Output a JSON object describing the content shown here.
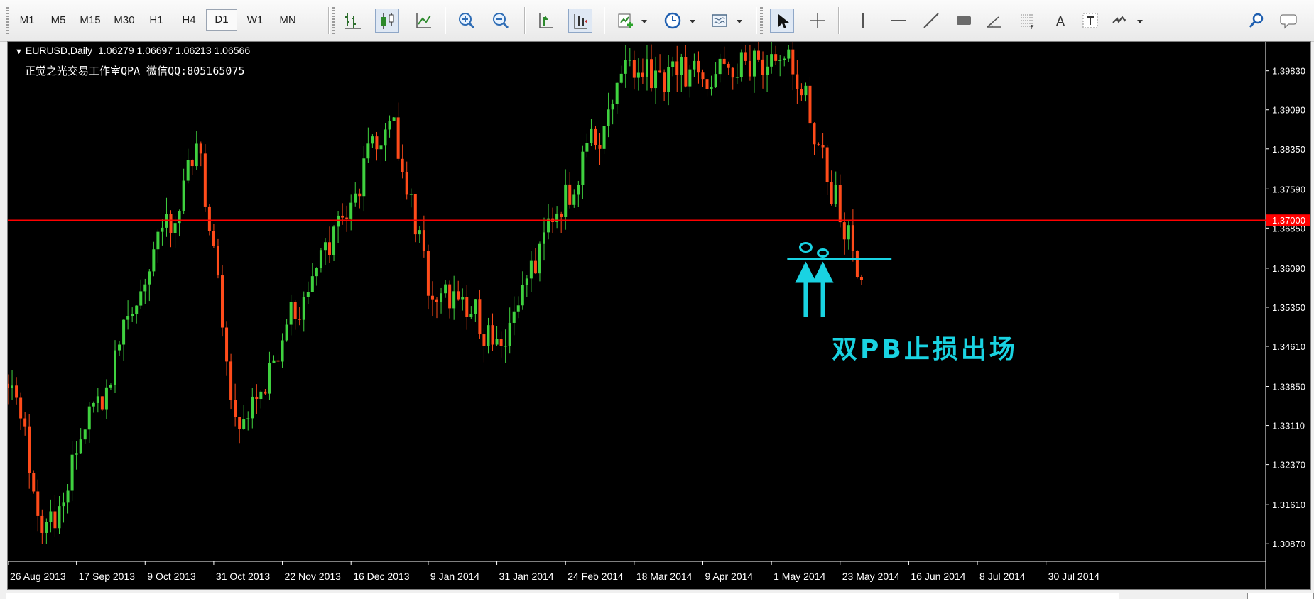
{
  "toolbar": {
    "timeframes": [
      {
        "label": "M1",
        "active": false
      },
      {
        "label": "M5",
        "active": false
      },
      {
        "label": "M15",
        "active": false
      },
      {
        "label": "M30",
        "active": false
      },
      {
        "label": "H1",
        "active": false
      },
      {
        "label": "H4",
        "active": false
      },
      {
        "label": "D1",
        "active": true
      },
      {
        "label": "W1",
        "active": false
      },
      {
        "label": "MN",
        "active": false
      }
    ],
    "text_tool_label": "A"
  },
  "chart": {
    "symbol_timeframe": "EURUSD,Daily",
    "ohlc_header": "1.06279 1.06697 1.06213 1.06566",
    "watermark_line": "正觉之光交易工作室QPA 微信QQ:805165075",
    "annotation": "双PB止损出场",
    "colors": {
      "background": "#000000",
      "bull_candle": "#3fd13f",
      "bear_candle": "#ff4b1a",
      "wick": "#e8e8e8",
      "level_line": "#ff0000",
      "annotation": "#19d3e2",
      "axis_text": "#ffffff",
      "level_label_bg": "#ff0000"
    }
  },
  "chart_data": {
    "type": "candlestick",
    "symbol": "EURUSD",
    "timeframe": "Daily",
    "x_tick_labels": [
      "26 Aug 2013",
      "17 Sep 2013",
      "9 Oct 2013",
      "31 Oct 2013",
      "22 Nov 2013",
      "16 Dec 2013",
      "9 Jan 2014",
      "31 Jan 2014",
      "24 Feb 2014",
      "18 Mar 2014",
      "9 Apr 2014",
      "1 May 2014",
      "23 May 2014",
      "16 Jun 2014",
      "8 Jul 2014",
      "30 Jul 2014"
    ],
    "y_tick_labels": [
      "1.39830",
      "1.39090",
      "1.38350",
      "1.37590",
      "1.36850",
      "1.36090",
      "1.35350",
      "1.34610",
      "1.33850",
      "1.33110",
      "1.32370",
      "1.31610",
      "1.30870"
    ],
    "ylim": [
      1.3055,
      1.4035
    ],
    "horizontal_level": {
      "price": 1.37,
      "label": "1.37000"
    },
    "annotation_level": 1.3627,
    "key_points": [
      {
        "date": "26 Aug 2013",
        "price": 1.339
      },
      {
        "date": "6 Sep 2013",
        "price": 1.3105
      },
      {
        "date": "9 Oct 2013",
        "price": 1.3585
      },
      {
        "date": "25 Oct 2013",
        "price": 1.3832
      },
      {
        "date": "7 Nov 2013",
        "price": 1.3295
      },
      {
        "date": "27 Dec 2013",
        "price": 1.3893
      },
      {
        "date": "9 Jan 2014",
        "price": 1.3572
      },
      {
        "date": "3 Feb 2014",
        "price": 1.3477
      },
      {
        "date": "13 Mar 2014",
        "price": 1.3967
      },
      {
        "date": "8 May 2014",
        "price": 1.3993
      },
      {
        "date": "30 May 2014",
        "price": 1.3586
      }
    ]
  }
}
